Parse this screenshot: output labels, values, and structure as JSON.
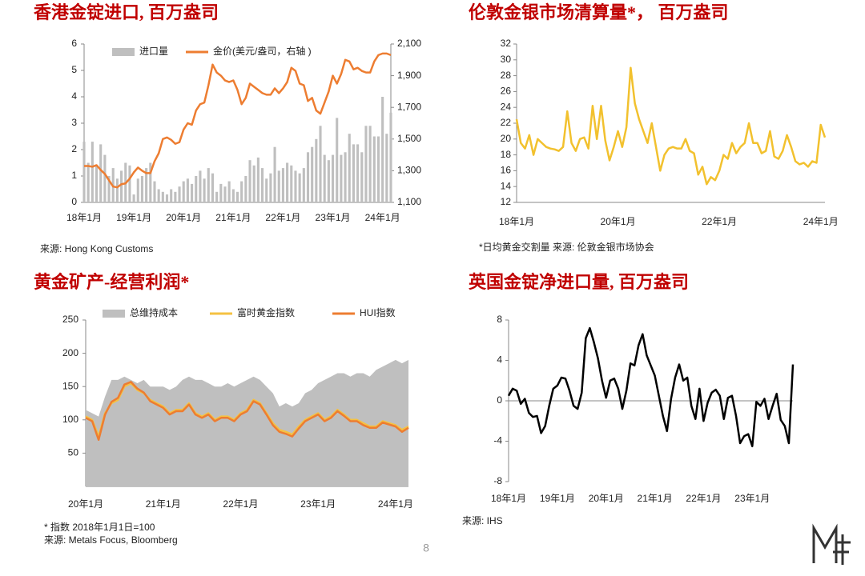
{
  "page_number": "8",
  "chart_data": [
    {
      "type": "combo",
      "title": "香港金锭进口, 百万盎司",
      "categories": [
        "18年1月",
        null,
        null,
        null,
        null,
        null,
        null,
        null,
        null,
        null,
        null,
        null,
        "19年1月",
        null,
        null,
        null,
        null,
        null,
        null,
        null,
        null,
        null,
        null,
        null,
        "20年1月",
        null,
        null,
        null,
        null,
        null,
        null,
        null,
        null,
        null,
        null,
        null,
        "21年1月",
        null,
        null,
        null,
        null,
        null,
        null,
        null,
        null,
        null,
        null,
        null,
        "22年1月",
        null,
        null,
        null,
        null,
        null,
        null,
        null,
        null,
        null,
        null,
        null,
        "23年1月",
        null,
        null,
        null,
        null,
        null,
        null,
        null,
        null,
        null,
        null,
        null,
        "24年1月",
        null,
        null
      ],
      "series": [
        {
          "name": "进口量",
          "kind": "bar",
          "color": "#bfbfbf",
          "values": [
            2.3,
            1.5,
            2.3,
            1.4,
            2.2,
            1.8,
            1.0,
            1.3,
            0.9,
            1.2,
            1.5,
            1.4,
            0.3,
            0.9,
            1.0,
            1.3,
            1.5,
            0.8,
            0.5,
            0.4,
            0.3,
            0.5,
            0.4,
            0.6,
            0.8,
            0.9,
            0.7,
            1.0,
            1.2,
            0.9,
            1.3,
            1.1,
            0.4,
            0.7,
            0.6,
            0.8,
            0.5,
            0.4,
            0.8,
            1.0,
            1.6,
            1.4,
            1.7,
            1.3,
            0.9,
            1.1,
            2.1,
            1.2,
            1.3,
            1.5,
            1.4,
            1.2,
            1.1,
            1.3,
            1.9,
            2.1,
            2.4,
            2.9,
            1.8,
            1.6,
            1.8,
            3.2,
            1.8,
            1.9,
            2.6,
            2.2,
            2.2,
            1.9,
            2.9,
            2.9,
            2.5,
            2.5,
            4.0,
            2.6,
            3.4
          ]
        },
        {
          "name": "金价(美元/盎司，右轴 )",
          "kind": "line",
          "axis": "y2",
          "color": "#ed7d31",
          "values": [
            1330,
            1330,
            1325,
            1335,
            1305,
            1280,
            1240,
            1200,
            1195,
            1215,
            1220,
            1250,
            1290,
            1320,
            1300,
            1285,
            1285,
            1360,
            1410,
            1500,
            1510,
            1495,
            1470,
            1480,
            1560,
            1600,
            1590,
            1680,
            1720,
            1730,
            1840,
            1970,
            1920,
            1900,
            1870,
            1860,
            1870,
            1810,
            1720,
            1760,
            1850,
            1830,
            1810,
            1790,
            1780,
            1780,
            1820,
            1790,
            1820,
            1860,
            1950,
            1930,
            1850,
            1840,
            1740,
            1760,
            1680,
            1660,
            1730,
            1800,
            1900,
            1850,
            1910,
            2000,
            1990,
            1940,
            1950,
            1930,
            1920,
            1920,
            1990,
            2030,
            2040,
            2040,
            2030
          ]
        }
      ],
      "ylim": [
        0,
        6
      ],
      "yticks": [
        0,
        1,
        2,
        3,
        4,
        5,
        6
      ],
      "y2lim": [
        1100,
        2100
      ],
      "y2ticks": [
        {
          "value": 1100,
          "label": "1,100"
        },
        {
          "value": 1300,
          "label": "1,300"
        },
        {
          "value": 1500,
          "label": "1,500"
        },
        {
          "value": 1700,
          "label": "1,700"
        },
        {
          "value": 1900,
          "label": "1,900"
        },
        {
          "value": 2100,
          "label": "2,100"
        }
      ],
      "legend": "top",
      "notes": [
        "来源: Hong Kong Customs"
      ]
    },
    {
      "type": "line",
      "title": "伦敦金银市场清算量*， 百万盎司",
      "categories": [
        "18年1月",
        null,
        null,
        null,
        null,
        null,
        null,
        null,
        null,
        null,
        null,
        null,
        null,
        null,
        null,
        null,
        null,
        null,
        null,
        null,
        null,
        null,
        null,
        null,
        "20年1月",
        null,
        null,
        null,
        null,
        null,
        null,
        null,
        null,
        null,
        null,
        null,
        null,
        null,
        null,
        null,
        null,
        null,
        null,
        null,
        null,
        null,
        null,
        null,
        "22年1月",
        null,
        null,
        null,
        null,
        null,
        null,
        null,
        null,
        null,
        null,
        null,
        null,
        null,
        null,
        null,
        null,
        null,
        null,
        null,
        null,
        null,
        null,
        null,
        "24年1月",
        null
      ],
      "values": [
        22.5,
        19.5,
        18.8,
        20.5,
        18.0,
        20.0,
        19.5,
        19.0,
        18.8,
        18.7,
        18.5,
        19.0,
        23.5,
        19.5,
        18.5,
        20.0,
        20.2,
        18.8,
        24.2,
        20.0,
        24.2,
        19.8,
        17.3,
        19.0,
        21.0,
        19.0,
        21.5,
        29.0,
        24.5,
        22.5,
        21.0,
        19.5,
        22.0,
        19.0,
        16.0,
        18.0,
        18.8,
        19.0,
        18.8,
        18.8,
        20.0,
        18.5,
        18.2,
        15.5,
        16.5,
        14.3,
        15.2,
        14.8,
        16.0,
        18.0,
        17.5,
        19.5,
        18.2,
        19.0,
        19.5,
        22.0,
        19.5,
        19.5,
        18.2,
        18.5,
        21.0,
        17.8,
        17.5,
        18.5,
        20.5,
        19.0,
        17.2,
        16.8,
        17.0,
        16.5,
        17.2,
        17.0,
        21.8,
        20.2
      ],
      "color": "#f2c12e",
      "ylim": [
        12,
        32
      ],
      "yticks": [
        12,
        14,
        16,
        18,
        20,
        22,
        24,
        26,
        28,
        30,
        32
      ],
      "notes": [
        "*日均黄金交割量 来源: 伦敦金银市场协会"
      ]
    },
    {
      "type": "area",
      "title": "黄金矿产-经营利润*",
      "categories": [
        "20年1月",
        null,
        null,
        null,
        null,
        null,
        null,
        null,
        null,
        null,
        null,
        null,
        "21年1月",
        null,
        null,
        null,
        null,
        null,
        null,
        null,
        null,
        null,
        null,
        null,
        "22年1月",
        null,
        null,
        null,
        null,
        null,
        null,
        null,
        null,
        null,
        null,
        null,
        "23年1月",
        null,
        null,
        null,
        null,
        null,
        null,
        null,
        null,
        null,
        null,
        null,
        "24年1月",
        null,
        null
      ],
      "series": [
        {
          "name": "总维持成本",
          "kind": "area",
          "color": "#bfbfbf",
          "values": [
            115,
            110,
            105,
            135,
            160,
            160,
            165,
            160,
            155,
            160,
            150,
            150,
            150,
            145,
            150,
            160,
            165,
            160,
            160,
            155,
            150,
            150,
            155,
            150,
            155,
            160,
            165,
            160,
            150,
            140,
            120,
            125,
            120,
            125,
            140,
            145,
            155,
            160,
            165,
            170,
            170,
            165,
            170,
            170,
            165,
            175,
            180,
            185,
            190,
            185,
            190
          ]
        },
        {
          "name": "富时黄金指数",
          "kind": "line",
          "color": "#f5c242",
          "values": [
            105,
            100,
            75,
            110,
            125,
            130,
            150,
            155,
            145,
            140,
            130,
            125,
            120,
            110,
            115,
            115,
            125,
            110,
            105,
            110,
            100,
            105,
            105,
            100,
            110,
            115,
            130,
            125,
            110,
            95,
            85,
            82,
            78,
            90,
            100,
            105,
            110,
            100,
            105,
            115,
            108,
            100,
            100,
            95,
            90,
            90,
            98,
            95,
            92,
            85,
            90
          ]
        },
        {
          "name": "HUI指数",
          "kind": "line",
          "color": "#ed7d31",
          "values": [
            103,
            98,
            70,
            108,
            127,
            133,
            153,
            157,
            147,
            141,
            128,
            123,
            118,
            108,
            113,
            113,
            123,
            108,
            103,
            108,
            98,
            103,
            103,
            98,
            108,
            113,
            128,
            123,
            108,
            92,
            82,
            79,
            75,
            87,
            98,
            103,
            108,
            98,
            103,
            113,
            106,
            98,
            98,
            92,
            88,
            88,
            96,
            93,
            90,
            82,
            88
          ]
        }
      ],
      "ylim": [
        0,
        250
      ],
      "yticks": [
        50,
        100,
        150,
        200,
        250
      ],
      "legend": "top",
      "notes": [
        "* 指数 2018年1月1日=100",
        "来源: Metals Focus, Bloomberg"
      ]
    },
    {
      "type": "line",
      "title": "英国金锭净进口量, 百万盎司",
      "categories": [
        "18年1月",
        null,
        null,
        null,
        null,
        null,
        null,
        null,
        null,
        null,
        null,
        null,
        "19年1月",
        null,
        null,
        null,
        null,
        null,
        null,
        null,
        null,
        null,
        null,
        null,
        "20年1月",
        null,
        null,
        null,
        null,
        null,
        null,
        null,
        null,
        null,
        null,
        null,
        "21年1月",
        null,
        null,
        null,
        null,
        null,
        null,
        null,
        null,
        null,
        null,
        null,
        "22年1月",
        null,
        null,
        null,
        null,
        null,
        null,
        null,
        null,
        null,
        null,
        null,
        "23年1月",
        null,
        null,
        null,
        null,
        null,
        null,
        null,
        null,
        null,
        null
      ],
      "values": [
        0.5,
        1.2,
        1.0,
        -0.3,
        0.2,
        -1.2,
        -1.6,
        -1.5,
        -3.2,
        -2.5,
        -0.5,
        1.2,
        1.5,
        2.3,
        2.2,
        1.0,
        -0.5,
        -0.8,
        0.8,
        6.2,
        7.2,
        5.8,
        4.2,
        2.0,
        0.3,
        2.0,
        2.2,
        1.2,
        -0.8,
        1.0,
        3.7,
        3.5,
        5.5,
        6.6,
        4.5,
        3.5,
        2.5,
        0.5,
        -1.5,
        -3.0,
        0.2,
        2.3,
        3.6,
        2.0,
        2.3,
        -0.5,
        -1.8,
        1.2,
        -2.0,
        -0.2,
        0.8,
        1.1,
        0.5,
        -1.8,
        0.3,
        0.5,
        -1.5,
        -4.2,
        -3.5,
        -3.3,
        -4.5,
        -0.1,
        -0.5,
        0.2,
        -1.8,
        -0.5,
        0.7,
        -1.9,
        -2.5,
        -4.2,
        3.6
      ],
      "color": "#000000",
      "ylim": [
        -8,
        8
      ],
      "yticks": [
        -8,
        -4,
        0,
        4,
        8
      ],
      "zero_line": true,
      "notes": [
        "来源: IHS"
      ]
    }
  ]
}
